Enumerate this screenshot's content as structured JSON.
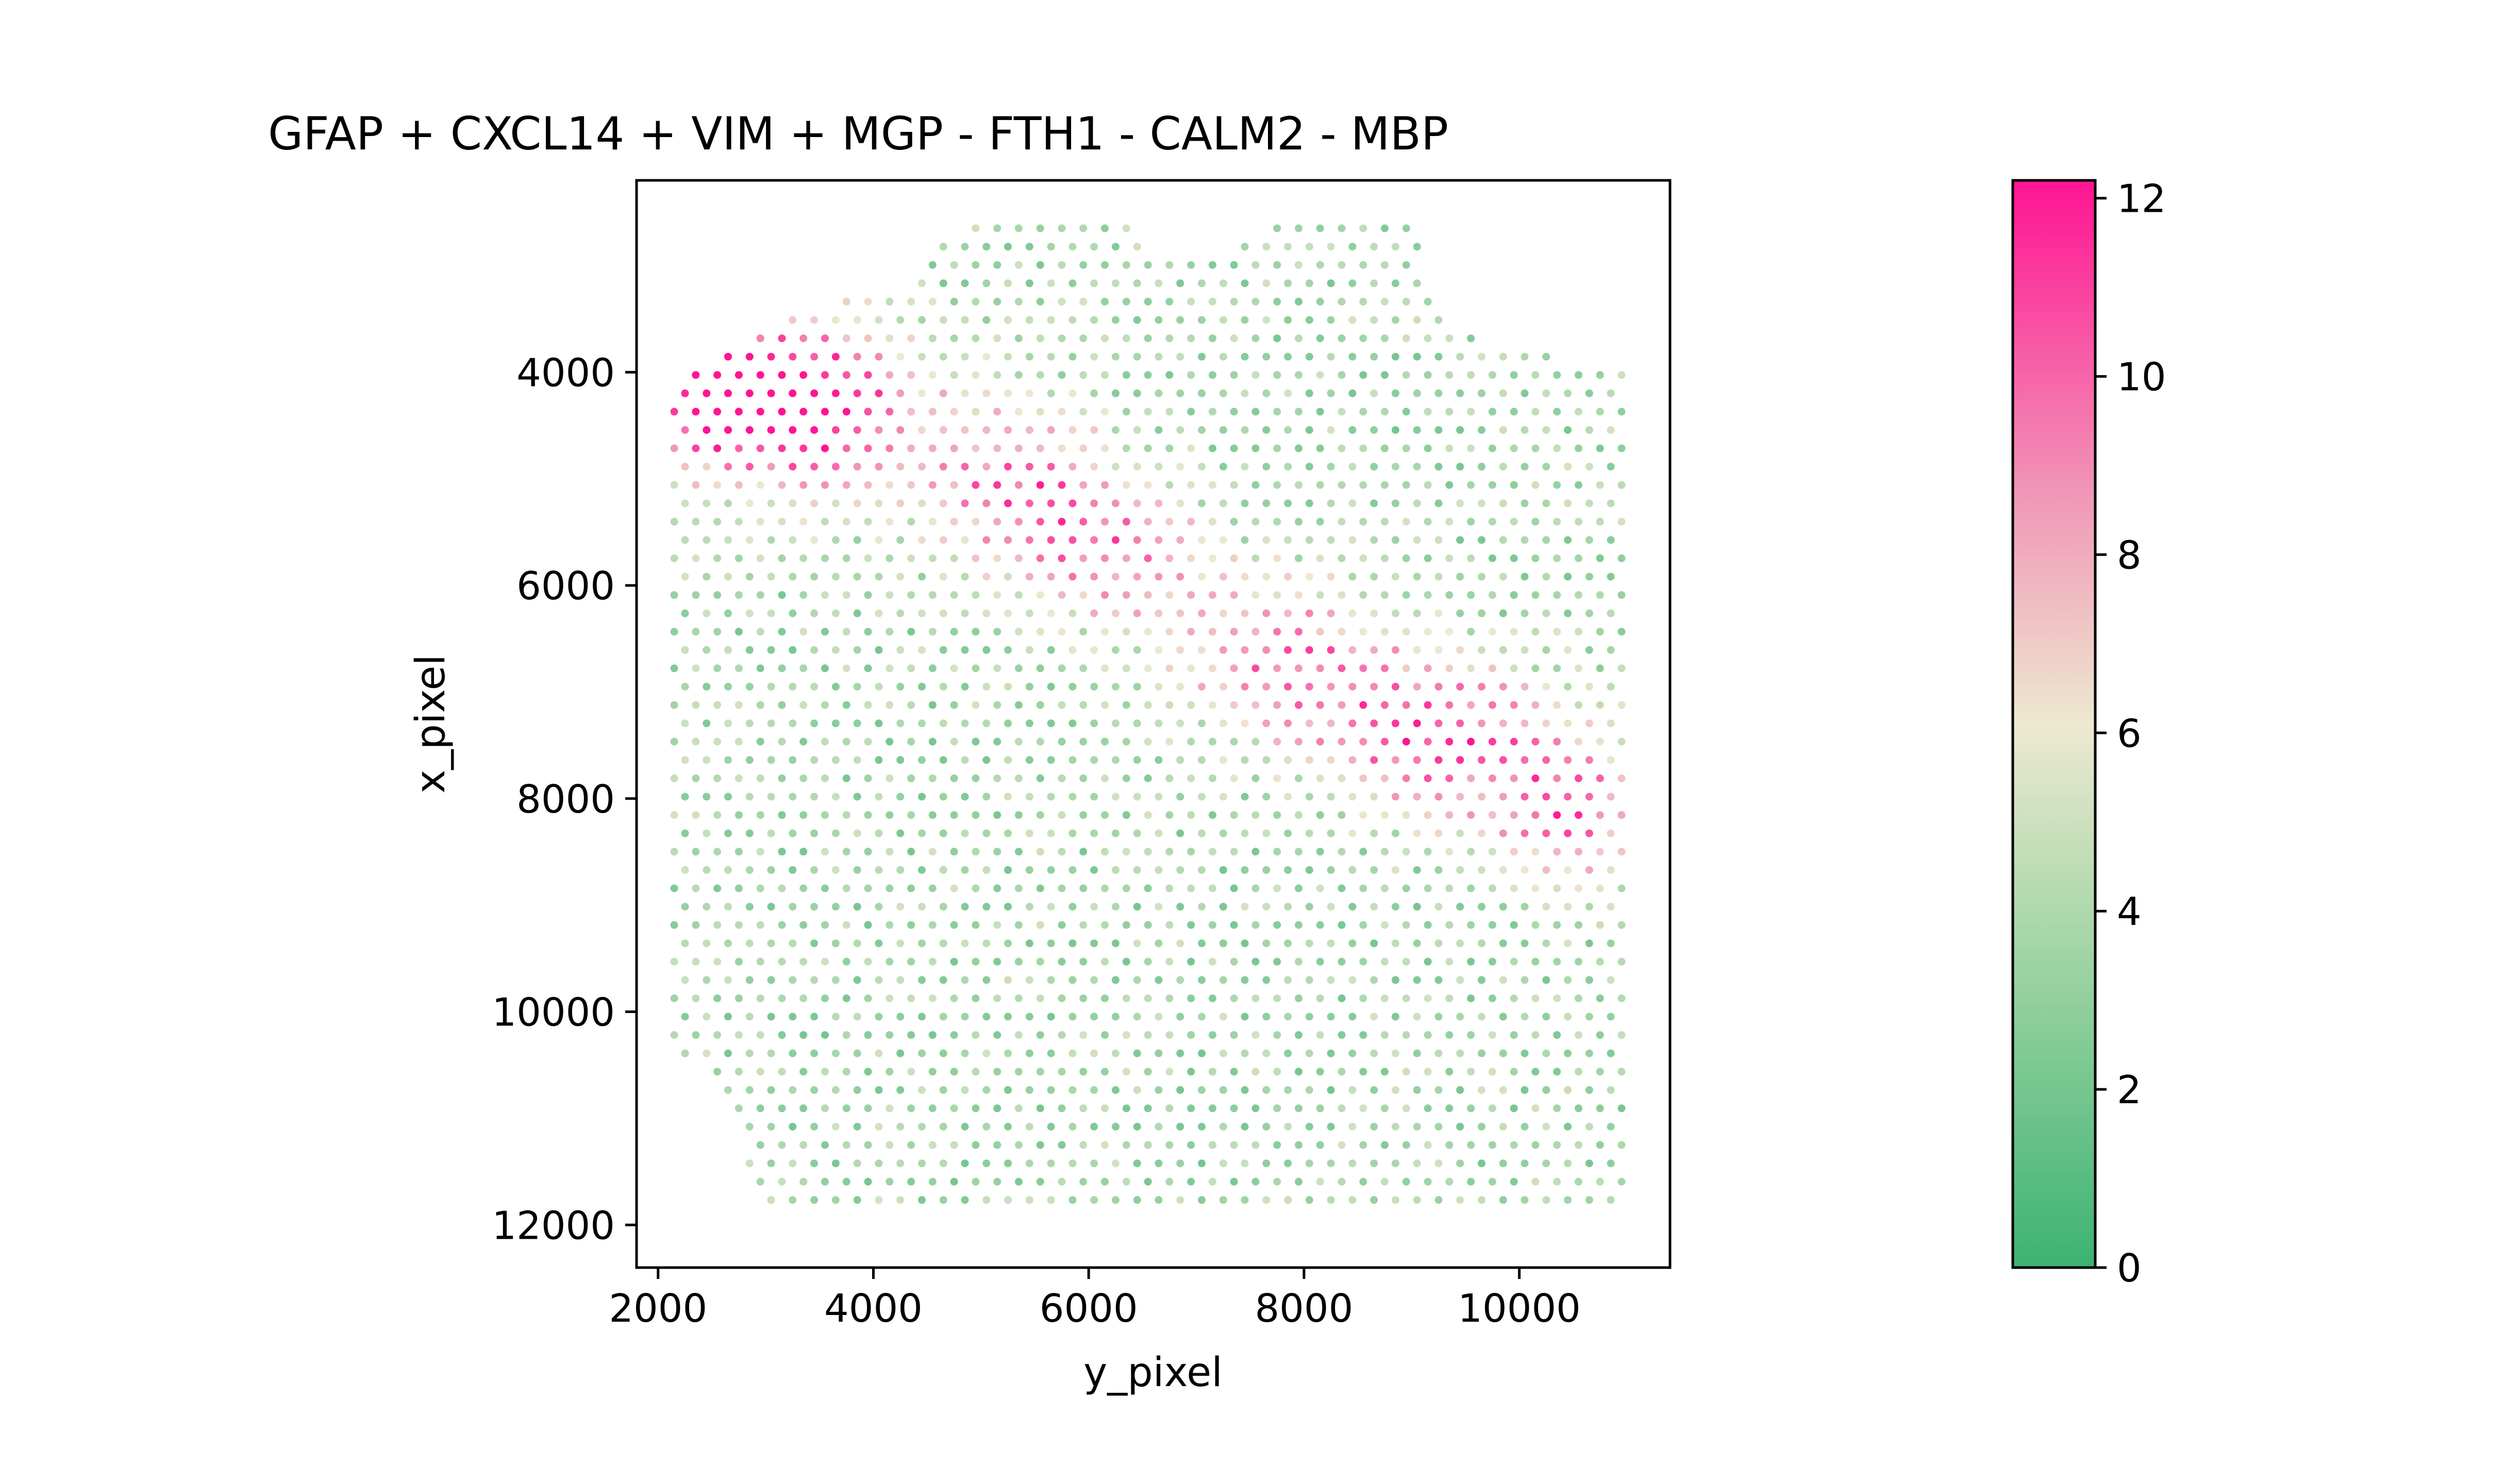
{
  "chart_data": {
    "type": "scatter",
    "title": "GFAP + CXCL14 + VIM + MGP - FTH1 - CALM2 - MBP",
    "xlabel": "y_pixel",
    "ylabel": "x_pixel",
    "xlim": [
      1800,
      11400
    ],
    "ylim": [
      12400,
      2200
    ],
    "y_inverted": true,
    "xticks": [
      2000,
      4000,
      6000,
      8000,
      10000
    ],
    "xtick_labels": [
      "2000",
      "4000",
      "6000",
      "8000",
      "10000"
    ],
    "yticks": [
      4000,
      6000,
      8000,
      10000,
      12000
    ],
    "ytick_labels": [
      "4000",
      "6000",
      "8000",
      "10000",
      "12000"
    ],
    "grid": false,
    "legend": "none",
    "colorbar": {
      "position": "right",
      "range": [
        0,
        12.2
      ],
      "ticks": [
        0,
        2,
        4,
        6,
        8,
        10,
        12
      ],
      "tick_labels": [
        "0",
        "2",
        "4",
        "6",
        "8",
        "10",
        "12"
      ],
      "colors": [
        {
          "stop": 0.0,
          "color": "#3cb371"
        },
        {
          "stop": 0.3,
          "color": "#a5d6a7"
        },
        {
          "stop": 0.5,
          "color": "#eee9d0"
        },
        {
          "stop": 0.7,
          "color": "#f09bb8"
        },
        {
          "stop": 1.0,
          "color": "#ff1493"
        }
      ]
    },
    "spot_grid": {
      "x_spacing": 200,
      "y_spacing": 172,
      "x_start": 2150,
      "y_start": 2650,
      "columns": 45,
      "rows": 54
    },
    "tissue_boundary": [
      [
        4820,
        2650
      ],
      [
        6450,
        2650
      ],
      [
        6480,
        2880
      ],
      [
        6950,
        2880
      ],
      [
        7050,
        3000
      ],
      [
        7300,
        2950
      ],
      [
        7580,
        2650
      ],
      [
        9100,
        2650
      ],
      [
        9150,
        3300
      ],
      [
        9700,
        3750
      ],
      [
        10200,
        3780
      ],
      [
        10550,
        3950
      ],
      [
        10950,
        4000
      ],
      [
        11000,
        4300
      ],
      [
        11000,
        11950
      ],
      [
        3000,
        11950
      ],
      [
        2850,
        11750
      ],
      [
        2750,
        11100
      ],
      [
        2300,
        10450
      ],
      [
        2150,
        10300
      ],
      [
        2150,
        4050
      ],
      [
        2700,
        3700
      ],
      [
        3400,
        3450
      ],
      [
        3900,
        3250
      ],
      [
        4350,
        3150
      ],
      [
        4450,
        2900
      ]
    ],
    "hotspots": [
      {
        "x": 2500,
        "y": 4150,
        "value": 11.8,
        "sx": 1100,
        "sy": 750
      },
      {
        "x": 3500,
        "y": 4350,
        "value": 10.8,
        "sx": 1000,
        "sy": 750
      },
      {
        "x": 5300,
        "y": 5000,
        "value": 9.6,
        "sx": 900,
        "sy": 700
      },
      {
        "x": 6200,
        "y": 5700,
        "value": 9.2,
        "sx": 900,
        "sy": 650
      },
      {
        "x": 7800,
        "y": 6700,
        "value": 9.6,
        "sx": 1000,
        "sy": 700
      },
      {
        "x": 9200,
        "y": 7400,
        "value": 11.2,
        "sx": 1000,
        "sy": 700
      },
      {
        "x": 10500,
        "y": 8100,
        "value": 10.2,
        "sx": 800,
        "sy": 650
      }
    ],
    "background_value": 3.6
  }
}
